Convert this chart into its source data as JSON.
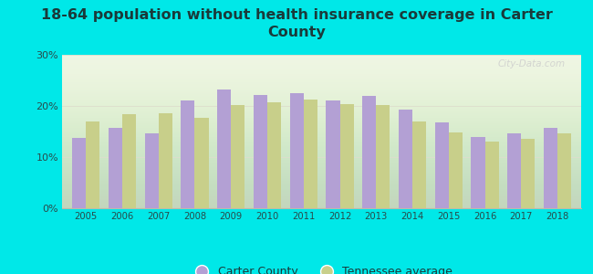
{
  "title": "18-64 population without health insurance coverage in Carter\nCounty",
  "years": [
    2005,
    2006,
    2007,
    2008,
    2009,
    2010,
    2011,
    2012,
    2013,
    2014,
    2015,
    2016,
    2017,
    2018
  ],
  "carter_county": [
    13.8,
    15.7,
    14.7,
    21.0,
    23.2,
    22.2,
    22.5,
    21.1,
    22.0,
    19.2,
    16.8,
    13.9,
    14.7,
    15.7
  ],
  "tennessee_avg": [
    17.0,
    18.4,
    18.6,
    17.7,
    20.2,
    20.7,
    21.3,
    20.3,
    20.1,
    17.0,
    14.8,
    13.1,
    13.6,
    14.7
  ],
  "carter_color": "#b3a0d4",
  "tn_color": "#c8cf8a",
  "background_outer": "#00e8e8",
  "background_inner": "#eef5e0",
  "ylim": [
    0,
    30
  ],
  "yticks": [
    0,
    10,
    20,
    30
  ],
  "ytick_labels": [
    "0%",
    "10%",
    "20%",
    "30%"
  ],
  "title_fontsize": 11.5,
  "title_color": "#1a3a3a",
  "tick_color": "#2a4a4a",
  "bar_width": 0.38,
  "legend_carter": "Carter County",
  "legend_tn": "Tennessee average",
  "watermark": "City-Data.com"
}
